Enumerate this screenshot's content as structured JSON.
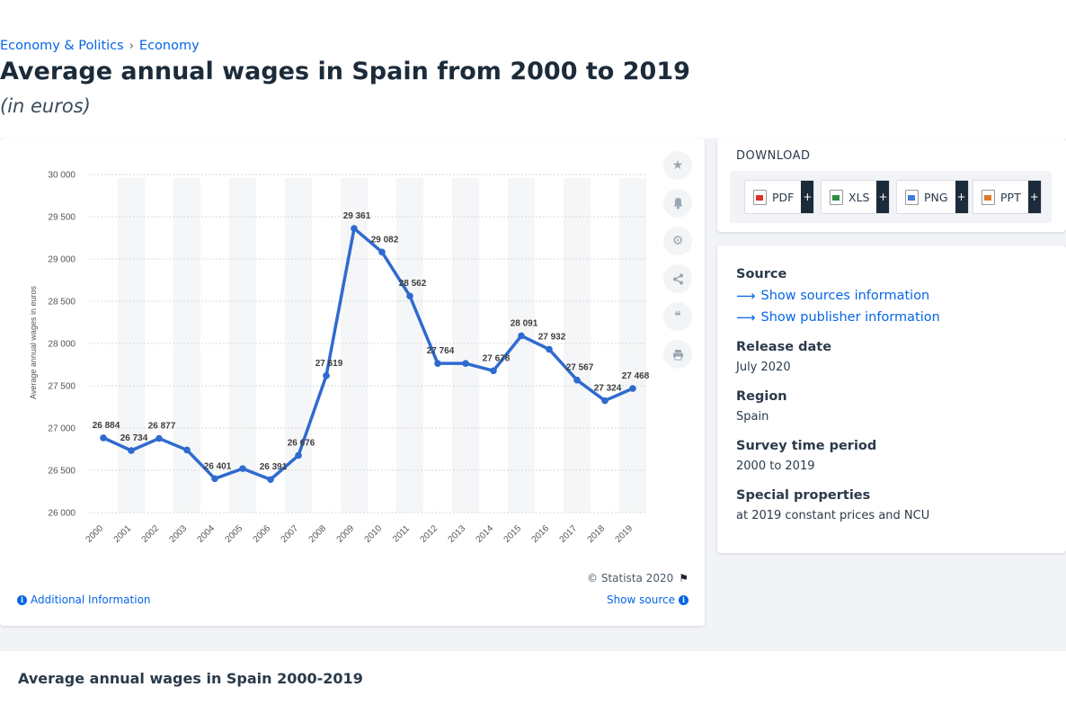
{
  "breadcrumb": {
    "items": [
      "Economy & Politics",
      "Economy"
    ],
    "separator": "›"
  },
  "page": {
    "title": "Average annual wages in Spain from 2000 to 2019",
    "subtitle": "(in euros)"
  },
  "chart_data": {
    "type": "line",
    "x": [
      "2000",
      "2001",
      "2002",
      "2003",
      "2004",
      "2005",
      "2006",
      "2007",
      "2008",
      "2009",
      "2010",
      "2011",
      "2012",
      "2013",
      "2014",
      "2015",
      "2016",
      "2017",
      "2018",
      "2019"
    ],
    "values": [
      26884,
      26734,
      26877,
      26740,
      26401,
      26520,
      26391,
      26676,
      27619,
      29361,
      29082,
      28562,
      27764,
      27764,
      27678,
      28091,
      27932,
      27567,
      27324,
      27468
    ],
    "labels": [
      {
        "index": 0,
        "text": "26 884"
      },
      {
        "index": 1,
        "text": "26 734"
      },
      {
        "index": 2,
        "text": "26 877"
      },
      {
        "index": 4,
        "text": "26 401"
      },
      {
        "index": 6,
        "text": "26 391"
      },
      {
        "index": 7,
        "text": "26 676"
      },
      {
        "index": 8,
        "text": "27 619"
      },
      {
        "index": 9,
        "text": "29 361"
      },
      {
        "index": 10,
        "text": "29 082"
      },
      {
        "index": 11,
        "text": "28 562"
      },
      {
        "index": 12,
        "text": "27 764"
      },
      {
        "index": 14,
        "text": "27 678"
      },
      {
        "index": 15,
        "text": "28 091"
      },
      {
        "index": 16,
        "text": "27 932"
      },
      {
        "index": 17,
        "text": "27 567"
      },
      {
        "index": 18,
        "text": "27 324"
      },
      {
        "index": 19,
        "text": "27 468"
      }
    ],
    "yticks": [
      26000,
      26500,
      27000,
      27500,
      28000,
      28500,
      29000,
      29500,
      30000
    ],
    "ytick_labels": [
      "26 000",
      "26 500",
      "27 000",
      "27 500",
      "28 000",
      "28 500",
      "29 000",
      "29 500",
      "30 000"
    ],
    "ylim": [
      26000,
      30000
    ],
    "ylabel": "Average annual wages in euros",
    "xlabel": "",
    "line_color": "#2f6bcf",
    "grid": true
  },
  "chart_panel": {
    "copyright": "© Statista 2020",
    "additional_info": "Additional Information",
    "show_source": "Show source"
  },
  "tools": [
    "star-icon",
    "bell-icon",
    "gear-icon",
    "share-icon",
    "quote-icon",
    "print-icon"
  ],
  "download": {
    "title": "DOWNLOAD",
    "buttons": [
      {
        "label": "PDF",
        "color": "#d9342b"
      },
      {
        "label": "XLS",
        "color": "#2e8b3e"
      },
      {
        "label": "PNG",
        "color": "#3b7dd8"
      },
      {
        "label": "PPT",
        "color": "#e0782a"
      }
    ],
    "plus": "+"
  },
  "meta": {
    "source_label": "Source",
    "show_sources": "Show sources information",
    "show_publisher": "Show publisher information",
    "release_label": "Release date",
    "release_value": "July 2020",
    "region_label": "Region",
    "region_value": "Spain",
    "survey_label": "Survey time period",
    "survey_value": "2000 to 2019",
    "special_label": "Special properties",
    "special_value": "at 2019 constant prices and NCU"
  },
  "bottom": {
    "title": "Average annual wages in Spain 2000-2019"
  }
}
